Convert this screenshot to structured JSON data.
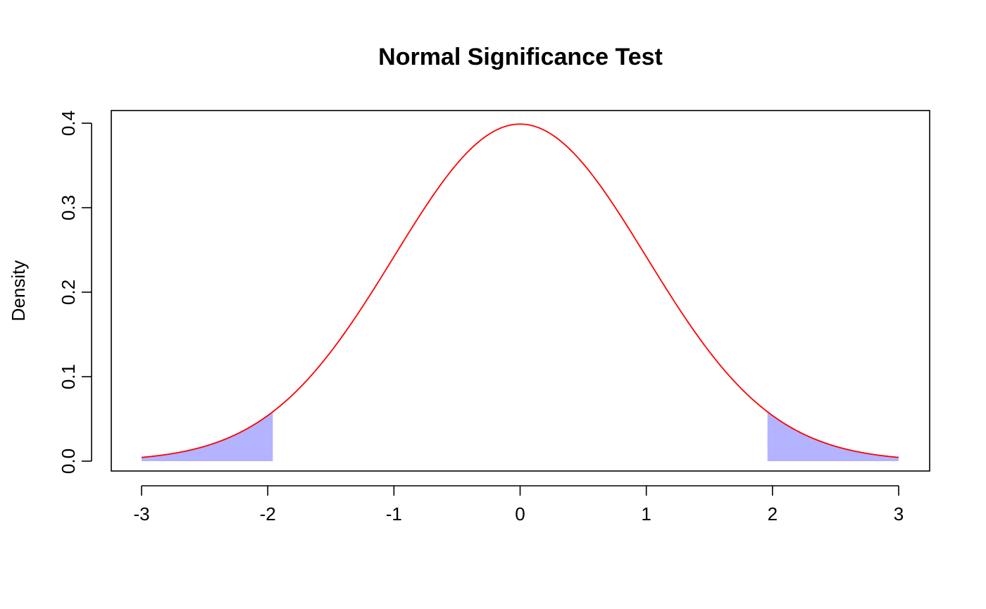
{
  "chart_data": {
    "type": "line",
    "title": "Normal Significance Test",
    "xlabel": "",
    "ylabel": "Density",
    "xlim": [
      -3,
      3
    ],
    "ylim": [
      0,
      0.4
    ],
    "x_ticks": [
      "-3",
      "-2",
      "-1",
      "0",
      "1",
      "2",
      "3"
    ],
    "y_ticks": [
      "0.0",
      "0.1",
      "0.2",
      "0.3",
      "0.4"
    ],
    "grid": false,
    "legend": "none",
    "series": [
      {
        "distribution": "standard normal",
        "mean": 0,
        "sd": 1,
        "x_range": [
          -3,
          3
        ],
        "color": "#ff0000",
        "points": [
          {
            "x": -3.0,
            "y": 0.0044
          },
          {
            "x": -2.5,
            "y": 0.0175
          },
          {
            "x": -2.0,
            "y": 0.054
          },
          {
            "x": -1.5,
            "y": 0.1295
          },
          {
            "x": -1.0,
            "y": 0.242
          },
          {
            "x": -0.5,
            "y": 0.3521
          },
          {
            "x": 0.0,
            "y": 0.3989
          },
          {
            "x": 0.5,
            "y": 0.3521
          },
          {
            "x": 1.0,
            "y": 0.242
          },
          {
            "x": 1.5,
            "y": 0.1295
          },
          {
            "x": 2.0,
            "y": 0.054
          },
          {
            "x": 2.5,
            "y": 0.0175
          },
          {
            "x": 3.0,
            "y": 0.0044
          }
        ]
      }
    ],
    "shaded_regions": [
      {
        "name": "lower-tail",
        "x_from": -3,
        "x_to": -1.96,
        "color": "#b3b3ff"
      },
      {
        "name": "upper-tail",
        "x_from": 1.96,
        "x_to": 3,
        "color": "#b3b3ff"
      }
    ]
  }
}
